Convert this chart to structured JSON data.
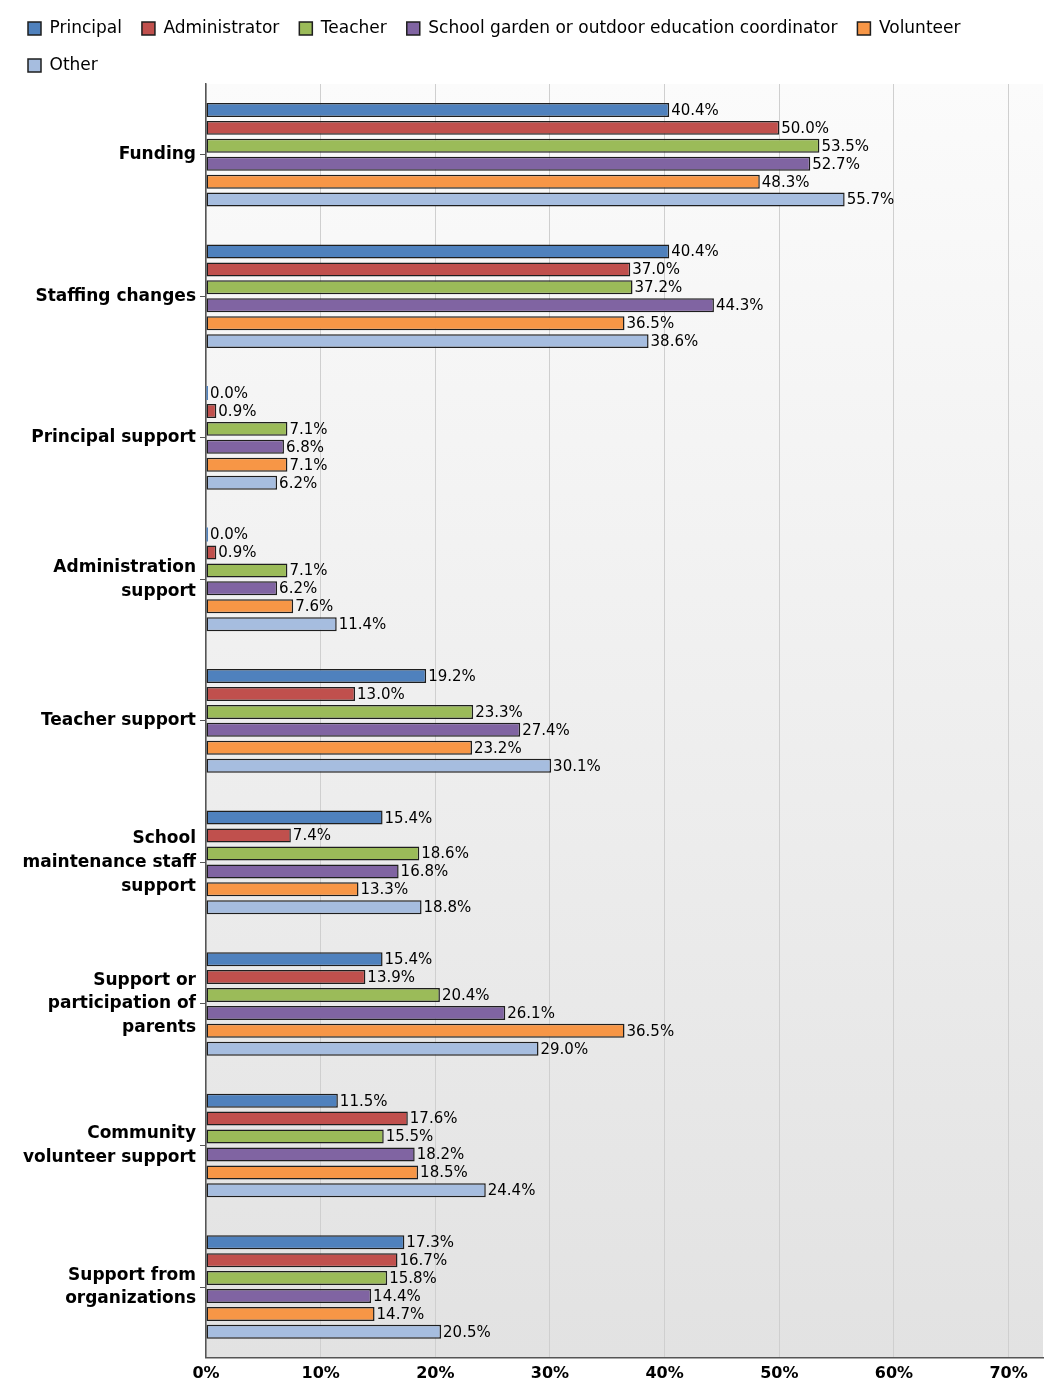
{
  "chart_data": {
    "type": "bar",
    "orientation": "horizontal",
    "categories": [
      "Funding",
      "Staffing changes",
      "Principal support",
      "Administration support",
      "Teacher support",
      "School maintenance staff support",
      "Support or participation of parents",
      "Community volunteer support",
      "Support from organizations"
    ],
    "series": [
      {
        "name": "Principal",
        "color": "#4f81bd",
        "values": [
          40.4,
          40.4,
          0.0,
          0.0,
          19.2,
          15.4,
          15.4,
          11.5,
          17.3
        ],
        "value_labels": [
          "40.4%",
          "40.4%",
          "0.0%",
          "0.0%",
          "19.2%",
          "15.4%",
          "15.4%",
          "11.5%",
          "17.3%"
        ]
      },
      {
        "name": "Administrator",
        "color": "#c0504d",
        "values": [
          50.0,
          37.0,
          0.9,
          0.9,
          13.0,
          7.4,
          13.9,
          17.6,
          16.7
        ],
        "value_labels": [
          "50.0%",
          "37.0%",
          "0.9%",
          "0.9%",
          "13.0%",
          "7.4%",
          "13.9%",
          "17.6%",
          "16.7%"
        ]
      },
      {
        "name": "Teacher",
        "color": "#9bbb59",
        "values": [
          53.5,
          37.2,
          7.1,
          7.1,
          23.3,
          18.6,
          20.4,
          15.5,
          15.8
        ],
        "value_labels": [
          "53.5%",
          "37.2%",
          "7.1%",
          "7.1%",
          "23.3%",
          "18.6%",
          "20.4%",
          "15.5%",
          "15.8%"
        ]
      },
      {
        "name": "School garden or outdoor education coordinator",
        "color": "#8064a2",
        "values": [
          52.7,
          44.3,
          6.8,
          6.2,
          27.4,
          16.8,
          26.1,
          18.2,
          14.4
        ],
        "value_labels": [
          "52.7%",
          "44.3%",
          "6.8%",
          "6.2%",
          "27.4%",
          "16.8%",
          "26.1%",
          "18.2%",
          "14.4%"
        ]
      },
      {
        "name": "Volunteer",
        "color": "#f79646",
        "values": [
          48.3,
          36.5,
          7.1,
          7.6,
          23.2,
          13.3,
          36.5,
          18.5,
          14.7
        ],
        "value_labels": [
          "48.3%",
          "36.5%",
          "7.1%",
          "7.6%",
          "23.2%",
          "13.3%",
          "36.5%",
          "18.5%",
          "14.7%"
        ]
      },
      {
        "name": "Other",
        "color": "#a6bddf",
        "values": [
          55.7,
          38.6,
          6.2,
          11.4,
          30.1,
          18.8,
          29.0,
          24.4,
          20.5
        ],
        "value_labels": [
          "55.7%",
          "38.6%",
          "6.2%",
          "11.4%",
          "30.1%",
          "18.8%",
          "29.0%",
          "24.4%",
          "20.5%"
        ]
      }
    ],
    "xlim": [
      0,
      73
    ],
    "xticks": [
      {
        "value": 0,
        "label": "0%"
      },
      {
        "value": 10,
        "label": "10%"
      },
      {
        "value": 20,
        "label": "20%"
      },
      {
        "value": 30,
        "label": "30%"
      },
      {
        "value": 40,
        "label": "40%"
      },
      {
        "value": 50,
        "label": "50%"
      },
      {
        "value": 60,
        "label": "60%"
      },
      {
        "value": 70,
        "label": "70%"
      }
    ],
    "grid": "x",
    "legend": "top left"
  }
}
